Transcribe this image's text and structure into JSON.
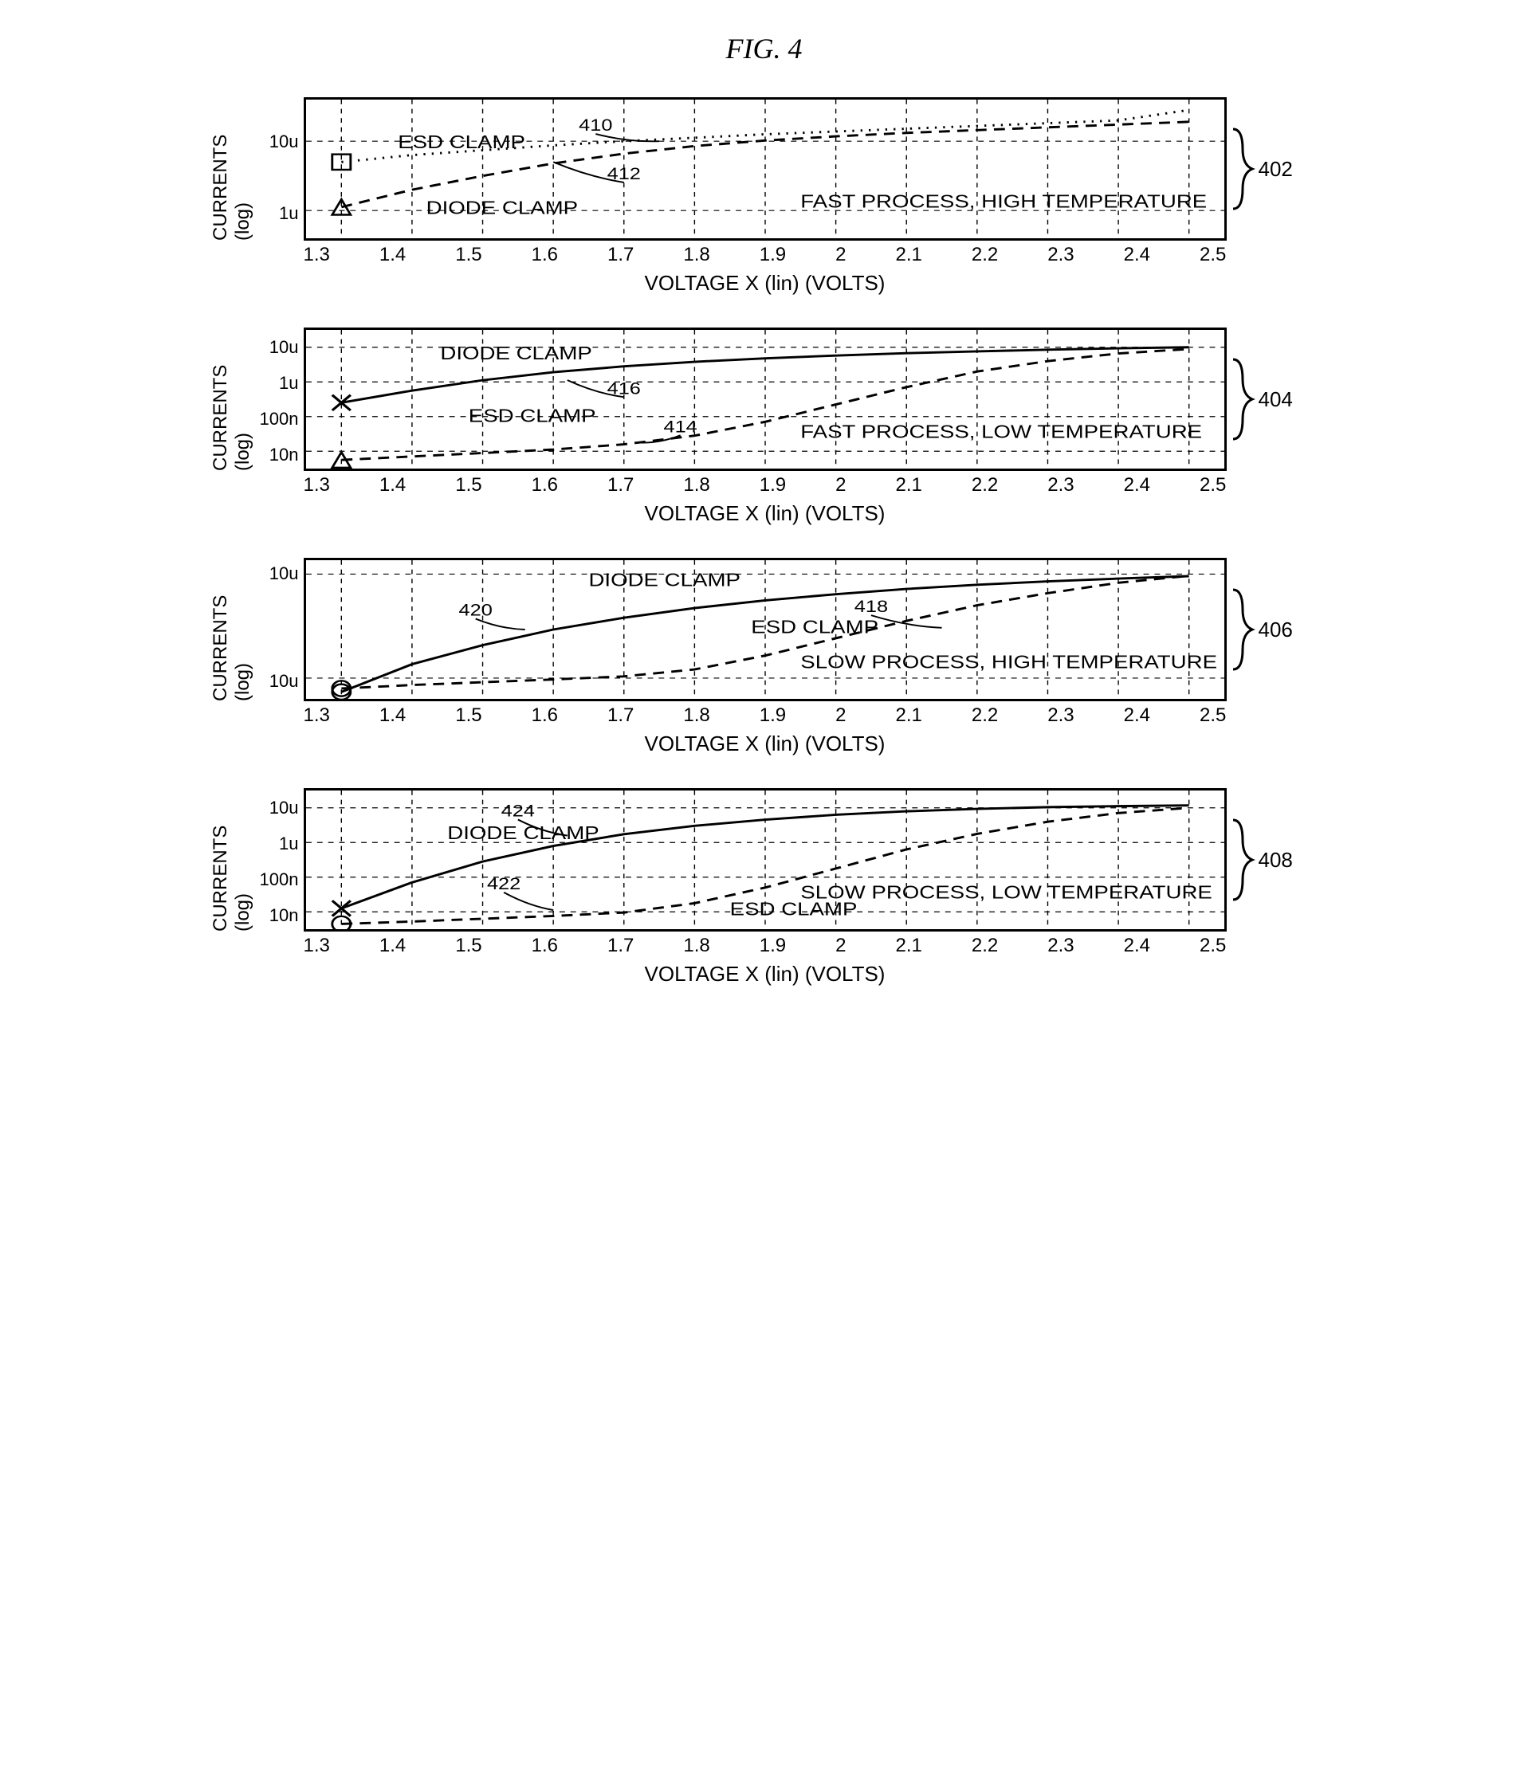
{
  "figure_title": "FIG. 4",
  "global": {
    "font_family_title": "Times New Roman, serif",
    "font_family_labels": "Arial, sans-serif",
    "stroke_color": "#000000",
    "background_color": "#ffffff",
    "grid_color": "#000000",
    "grid_dash": "6 6",
    "line_width_series": 3,
    "line_width_axis": 3,
    "xaxis_label": "VOLTAGE X (lin) (VOLTS)",
    "yaxis_label": "CURRENTS (log)",
    "x_ticks": [
      "1.3",
      "1.4",
      "1.5",
      "1.6",
      "1.7",
      "1.8",
      "1.9",
      "2",
      "2.1",
      "2.2",
      "2.3",
      "2.4",
      "2.5"
    ],
    "xlim": [
      1.25,
      2.55
    ],
    "x_scale": "linear",
    "y_scale": "log"
  },
  "panels": [
    {
      "id": "402",
      "caption": "FAST PROCESS, HIGH TEMPERATURE",
      "ylim_exp": [
        -6.4,
        -4.4
      ],
      "y_ticks": [
        {
          "label": "10u",
          "exp": -5
        },
        {
          "label": "1u",
          "exp": -6
        }
      ],
      "grid_y_exp": [
        -5,
        -6
      ],
      "series": [
        {
          "name": "ESD CLAMP",
          "callout_ref": "410",
          "dash": "2 7",
          "marker": "square",
          "label_xy": [
            1.38,
            -5.1
          ],
          "callout": {
            "label_xy": [
              1.66,
              -4.85
            ],
            "tip_xy": [
              1.75,
              -5.0
            ]
          },
          "points": [
            [
              1.3,
              -5.3
            ],
            [
              1.4,
              -5.2
            ],
            [
              1.5,
              -5.13
            ],
            [
              1.6,
              -5.06
            ],
            [
              1.7,
              -5.0
            ],
            [
              1.8,
              -4.95
            ],
            [
              1.9,
              -4.9
            ],
            [
              2.0,
              -4.86
            ],
            [
              2.1,
              -4.82
            ],
            [
              2.2,
              -4.78
            ],
            [
              2.3,
              -4.74
            ],
            [
              2.4,
              -4.7
            ],
            [
              2.5,
              -4.55
            ]
          ]
        },
        {
          "name": "DIODE CLAMP",
          "callout_ref": "412",
          "dash": "12 8",
          "marker": "triangle",
          "label_xy": [
            1.42,
            -6.05
          ],
          "callout": {
            "label_xy": [
              1.7,
              -5.55
            ],
            "tip_xy": [
              1.6,
              -5.3
            ]
          },
          "points": [
            [
              1.3,
              -5.95
            ],
            [
              1.4,
              -5.7
            ],
            [
              1.5,
              -5.5
            ],
            [
              1.6,
              -5.32
            ],
            [
              1.7,
              -5.18
            ],
            [
              1.8,
              -5.07
            ],
            [
              1.9,
              -4.99
            ],
            [
              2.0,
              -4.93
            ],
            [
              2.1,
              -4.88
            ],
            [
              2.2,
              -4.84
            ],
            [
              2.3,
              -4.8
            ],
            [
              2.4,
              -4.76
            ],
            [
              2.5,
              -4.72
            ]
          ]
        }
      ]
    },
    {
      "id": "404",
      "caption": "FAST PROCESS, LOW TEMPERATURE",
      "ylim_exp": [
        -8.5,
        -4.5
      ],
      "y_ticks": [
        {
          "label": "10u",
          "exp": -5
        },
        {
          "label": "1u",
          "exp": -6
        },
        {
          "label": "100n",
          "exp": -7
        },
        {
          "label": "10n",
          "exp": -8
        }
      ],
      "grid_y_exp": [
        -5,
        -6,
        -7,
        -8
      ],
      "series": [
        {
          "name": "DIODE CLAMP",
          "callout_ref": "416",
          "dash": "none",
          "marker": "x",
          "label_xy": [
            1.44,
            -5.35
          ],
          "callout": {
            "label_xy": [
              1.7,
              -6.35
            ],
            "tip_xy": [
              1.62,
              -5.95
            ]
          },
          "points": [
            [
              1.3,
              -6.6
            ],
            [
              1.4,
              -6.25
            ],
            [
              1.5,
              -5.95
            ],
            [
              1.6,
              -5.72
            ],
            [
              1.7,
              -5.55
            ],
            [
              1.8,
              -5.42
            ],
            [
              1.9,
              -5.32
            ],
            [
              2.0,
              -5.24
            ],
            [
              2.1,
              -5.17
            ],
            [
              2.2,
              -5.12
            ],
            [
              2.3,
              -5.07
            ],
            [
              2.4,
              -5.03
            ],
            [
              2.5,
              -5.0
            ]
          ]
        },
        {
          "name": "ESD CLAMP",
          "callout_ref": "414",
          "dash": "12 8",
          "marker": "triangle",
          "label_xy": [
            1.48,
            -7.15
          ],
          "callout": {
            "label_xy": [
              1.78,
              -7.45
            ],
            "tip_xy": [
              1.72,
              -7.75
            ]
          },
          "points": [
            [
              1.3,
              -8.25
            ],
            [
              1.4,
              -8.15
            ],
            [
              1.5,
              -8.05
            ],
            [
              1.6,
              -7.95
            ],
            [
              1.7,
              -7.8
            ],
            [
              1.8,
              -7.55
            ],
            [
              1.9,
              -7.15
            ],
            [
              2.0,
              -6.65
            ],
            [
              2.1,
              -6.15
            ],
            [
              2.2,
              -5.7
            ],
            [
              2.3,
              -5.4
            ],
            [
              2.4,
              -5.18
            ],
            [
              2.5,
              -5.05
            ]
          ]
        }
      ]
    },
    {
      "id": "406",
      "caption": "SLOW PROCESS, HIGH TEMPERATURE",
      "ylim_exp": [
        -8.6,
        -4.6
      ],
      "y_ticks": [
        {
          "label": "10u",
          "exp": -5
        },
        {
          "label": "10u",
          "exp": -8
        }
      ],
      "grid_y_exp": [
        -5,
        -8
      ],
      "series": [
        {
          "name": "DIODE CLAMP",
          "callout_ref": "420",
          "dash": "none",
          "marker": "circle",
          "label_xy": [
            1.65,
            -5.35
          ],
          "callout": {
            "label_xy": [
              1.49,
              -6.2
            ],
            "tip_xy": [
              1.56,
              -6.6
            ]
          },
          "points": [
            [
              1.3,
              -8.4
            ],
            [
              1.4,
              -7.6
            ],
            [
              1.5,
              -7.05
            ],
            [
              1.6,
              -6.6
            ],
            [
              1.7,
              -6.26
            ],
            [
              1.8,
              -5.98
            ],
            [
              1.9,
              -5.76
            ],
            [
              2.0,
              -5.58
            ],
            [
              2.1,
              -5.43
            ],
            [
              2.2,
              -5.31
            ],
            [
              2.3,
              -5.21
            ],
            [
              2.4,
              -5.13
            ],
            [
              2.5,
              -5.06
            ]
          ]
        },
        {
          "name": "ESD CLAMP",
          "callout_ref": "418",
          "dash": "12 8",
          "marker": "circle-open",
          "label_xy": [
            1.88,
            -6.7
          ],
          "callout": {
            "label_xy": [
              2.05,
              -6.1
            ],
            "tip_xy": [
              2.15,
              -6.55
            ]
          },
          "points": [
            [
              1.3,
              -8.3
            ],
            [
              1.4,
              -8.2
            ],
            [
              1.5,
              -8.12
            ],
            [
              1.6,
              -8.04
            ],
            [
              1.7,
              -7.95
            ],
            [
              1.8,
              -7.75
            ],
            [
              1.9,
              -7.35
            ],
            [
              2.0,
              -6.85
            ],
            [
              2.1,
              -6.35
            ],
            [
              2.2,
              -5.9
            ],
            [
              2.3,
              -5.55
            ],
            [
              2.4,
              -5.25
            ],
            [
              2.5,
              -5.05
            ]
          ]
        }
      ]
    },
    {
      "id": "408",
      "caption": "SLOW PROCESS, LOW TEMPERATURE",
      "ylim_exp": [
        -8.5,
        -4.5
      ],
      "y_ticks": [
        {
          "label": "10u",
          "exp": -5
        },
        {
          "label": "1u",
          "exp": -6
        },
        {
          "label": "100n",
          "exp": -7
        },
        {
          "label": "10n",
          "exp": -8
        }
      ],
      "grid_y_exp": [
        -5,
        -6,
        -7,
        -8
      ],
      "series": [
        {
          "name": "DIODE CLAMP",
          "callout_ref": "424",
          "dash": "none",
          "marker": "x",
          "label_xy": [
            1.45,
            -5.9
          ],
          "callout": {
            "label_xy": [
              1.55,
              -5.25
            ],
            "tip_xy": [
              1.62,
              -5.8
            ]
          },
          "points": [
            [
              1.3,
              -7.9
            ],
            [
              1.4,
              -7.15
            ],
            [
              1.5,
              -6.55
            ],
            [
              1.6,
              -6.1
            ],
            [
              1.7,
              -5.76
            ],
            [
              1.8,
              -5.52
            ],
            [
              1.9,
              -5.34
            ],
            [
              2.0,
              -5.2
            ],
            [
              2.1,
              -5.1
            ],
            [
              2.2,
              -5.03
            ],
            [
              2.3,
              -4.98
            ],
            [
              2.4,
              -4.95
            ],
            [
              2.5,
              -4.93
            ]
          ]
        },
        {
          "name": "ESD CLAMP",
          "callout_ref": "422",
          "dash": "12 8",
          "marker": "circle-open",
          "label_xy": [
            1.85,
            -8.1
          ],
          "callout": {
            "label_xy": [
              1.53,
              -7.35
            ],
            "tip_xy": [
              1.6,
              -7.95
            ]
          },
          "points": [
            [
              1.3,
              -8.35
            ],
            [
              1.4,
              -8.28
            ],
            [
              1.5,
              -8.2
            ],
            [
              1.6,
              -8.12
            ],
            [
              1.7,
              -8.02
            ],
            [
              1.8,
              -7.75
            ],
            [
              1.9,
              -7.3
            ],
            [
              2.0,
              -6.75
            ],
            [
              2.1,
              -6.2
            ],
            [
              2.2,
              -5.75
            ],
            [
              2.3,
              -5.4
            ],
            [
              2.4,
              -5.15
            ],
            [
              2.5,
              -5.0
            ]
          ]
        }
      ]
    }
  ]
}
